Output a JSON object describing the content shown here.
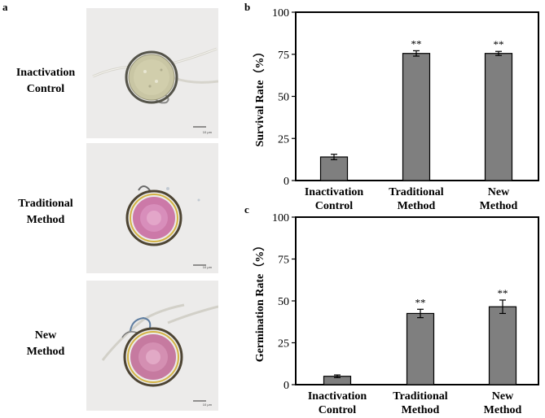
{
  "panels": {
    "a": {
      "letter": "a",
      "rows": [
        {
          "label": "Inactivation\nControl",
          "scale_bar": "10 μm"
        },
        {
          "label": "Traditional\nMethod",
          "scale_bar": "10 μm"
        },
        {
          "label": "New\nMethod",
          "scale_bar": "10 μm"
        }
      ]
    },
    "b": {
      "letter": "b"
    },
    "c": {
      "letter": "c"
    }
  },
  "colors": {
    "bar_fill": "#7f7f7f",
    "bar_stroke": "#000000",
    "axis": "#000000",
    "micro_bg": "#ecebea",
    "spore_control": "#c9c6a4",
    "spore_stained": "#cc79a8"
  },
  "chart_data": [
    {
      "id": "b",
      "type": "bar",
      "categories": [
        "Inactivation\nControl",
        "Traditional\nMethod",
        "New\nMethod"
      ],
      "values": [
        14,
        75.5,
        75.5
      ],
      "errors": [
        1.6,
        1.6,
        1.2
      ],
      "annotations": [
        "",
        "**",
        "**"
      ],
      "ylabel": "Survival Rate（%）",
      "ylim": [
        0,
        100
      ],
      "yticks": [
        0,
        25,
        50,
        75,
        100
      ]
    },
    {
      "id": "c",
      "type": "bar",
      "categories": [
        "Inactivation\nControl",
        "Traditional\nMethod",
        "New\nMethod"
      ],
      "values": [
        5,
        42.5,
        46.5
      ],
      "errors": [
        0.8,
        2.5,
        4
      ],
      "annotations": [
        "",
        "**",
        "**"
      ],
      "ylabel": "Germination Rate（%）",
      "ylim": [
        0,
        100
      ],
      "yticks": [
        0,
        25,
        50,
        75,
        100
      ]
    }
  ]
}
